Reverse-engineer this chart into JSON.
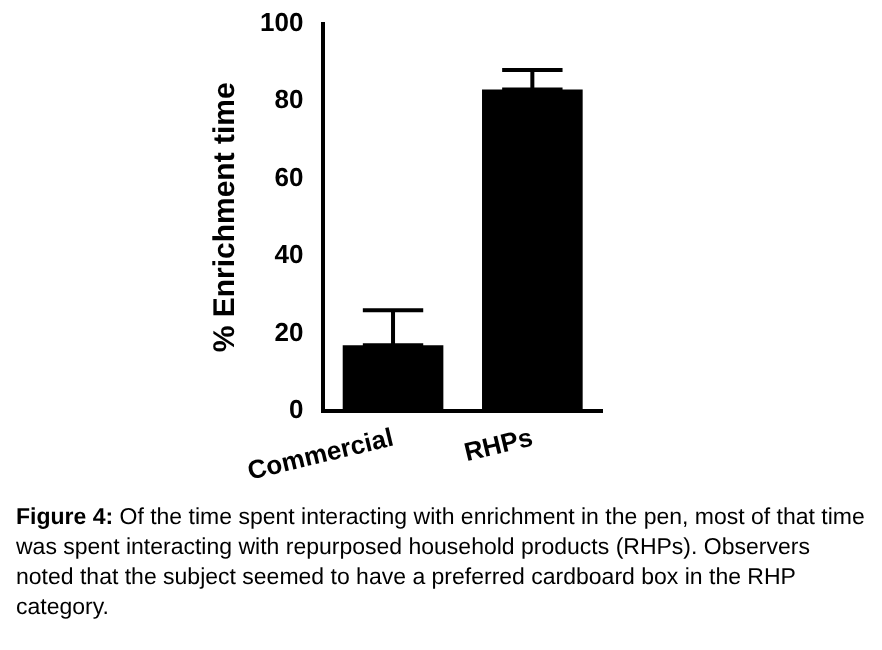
{
  "chart_data": {
    "type": "bar",
    "ylabel": "% Enrichment time",
    "categories": [
      "Commercial",
      "RHPs"
    ],
    "values": [
      17,
      83
    ],
    "color": "#000000",
    "errors": [
      [
        17,
        26
      ],
      [
        83,
        88
      ]
    ],
    "ylim": [
      0,
      100
    ],
    "yticks": [
      0,
      20,
      40,
      60,
      80,
      100
    ],
    "grid": false,
    "annotations": [
      "Figure 4: Of the time spent interacting with enrichment in the pen, most of that time was spent interacting with repurposed household products (RHPs). Observers noted that the subject seemed to have a preferred cardboard box in the RHP category."
    ]
  }
}
